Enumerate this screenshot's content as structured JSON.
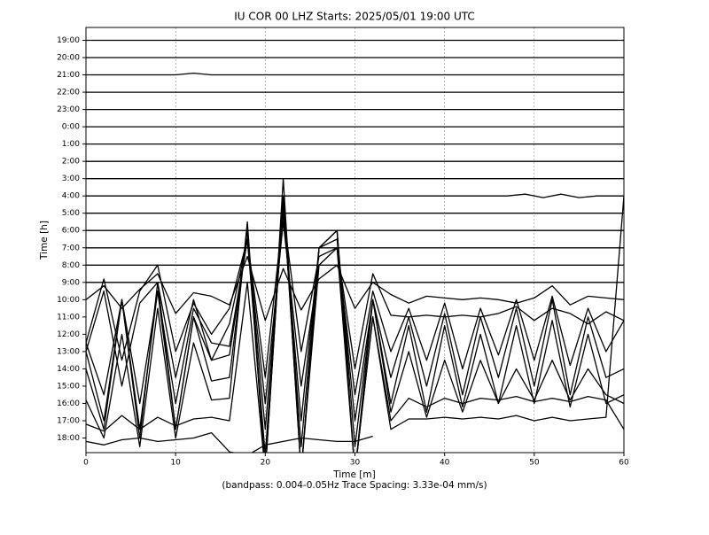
{
  "chart_data": {
    "type": "helicorder",
    "title": "IU COR 00 LHZ  Starts: 2025/05/01 19:00 UTC",
    "x_label": "Time [m]",
    "y_label": "Time [h]",
    "footnote": "(bandpass: 0.004-0.05Hz  Trace Spacing: 3.33e-04 mm/s)",
    "xlim": [
      0,
      60
    ],
    "xticks": [
      0,
      10,
      20,
      30,
      40,
      50,
      60
    ],
    "grid": true,
    "color": "#000000",
    "categories": [
      "19:00",
      "20:00",
      "21:00",
      "22:00",
      "23:00",
      "0:00",
      "1:00",
      "2:00",
      "3:00",
      "4:00",
      "5:00",
      "6:00",
      "7:00",
      "8:00",
      "9:00",
      "10:00",
      "11:00",
      "12:00",
      "13:00",
      "14:00",
      "15:00",
      "16:00",
      "17:00",
      "18:00"
    ],
    "series": [
      {
        "x": [
          0,
          60
        ],
        "values": [
          0,
          0
        ]
      },
      {
        "x": [
          0,
          60
        ],
        "values": [
          0,
          0
        ]
      },
      {
        "x": [
          0,
          10,
          12,
          14,
          60
        ],
        "values": [
          0,
          0,
          0.1,
          0,
          0
        ]
      },
      {
        "x": [
          0,
          60
        ],
        "values": [
          0,
          0
        ]
      },
      {
        "x": [
          0,
          60
        ],
        "values": [
          0,
          0
        ]
      },
      {
        "x": [
          0,
          60
        ],
        "values": [
          0,
          0
        ]
      },
      {
        "x": [
          0,
          60
        ],
        "values": [
          0,
          0
        ]
      },
      {
        "x": [
          0,
          60
        ],
        "values": [
          0,
          0
        ]
      },
      {
        "x": [
          0,
          60
        ],
        "values": [
          0,
          0
        ]
      },
      {
        "x": [
          0,
          47,
          49,
          51,
          53,
          55,
          57,
          60
        ],
        "values": [
          0,
          0,
          0.1,
          -0.1,
          0.1,
          -0.1,
          0,
          0
        ]
      },
      {
        "x": [
          0,
          60
        ],
        "values": [
          0,
          0
        ]
      },
      {
        "x": [
          0,
          60
        ],
        "values": [
          0,
          0
        ]
      },
      {
        "x": [
          0,
          60
        ],
        "values": [
          0,
          0
        ]
      },
      {
        "x": [
          0,
          60
        ],
        "values": [
          0,
          0
        ]
      },
      {
        "x": [
          0,
          60
        ],
        "values": [
          0,
          0
        ]
      },
      {
        "x": [
          0,
          2,
          4,
          6,
          8,
          10,
          12,
          14,
          16,
          18,
          20,
          22,
          24,
          26,
          28,
          30,
          32,
          34,
          36,
          38,
          40,
          42,
          44,
          46,
          48,
          50,
          52,
          54,
          56,
          58,
          60
        ],
        "values": [
          0,
          0.8,
          -0.5,
          0.6,
          1.5,
          -0.8,
          0.4,
          0.2,
          -0.3,
          2.5,
          -1.2,
          1.8,
          -0.6,
          1.2,
          2.0,
          -0.5,
          1.0,
          0.3,
          -0.2,
          0.2,
          0.1,
          0,
          0.1,
          0,
          -0.2,
          0.1,
          0.8,
          -0.3,
          0.2,
          0.1,
          0
        ]
      },
      {
        "x": [
          0,
          2,
          4,
          6,
          8,
          10,
          12,
          14,
          16,
          18,
          20,
          22,
          24,
          26,
          28,
          30,
          32,
          34,
          36,
          38,
          40,
          42,
          44,
          46,
          48,
          50,
          52,
          54,
          56,
          58,
          60
        ],
        "values": [
          -1.5,
          2.2,
          -2.5,
          1.5,
          3.0,
          -2.0,
          0.8,
          -1.0,
          0.5,
          4.5,
          -3.5,
          6.0,
          -2.0,
          3.5,
          4.0,
          -3.0,
          2.5,
          0.1,
          0,
          0.1,
          0,
          0.1,
          0,
          0.2,
          0.6,
          -0.2,
          0.5,
          0.2,
          -0.4,
          0.3,
          -0.2
        ]
      },
      {
        "x": [
          0,
          2,
          4,
          6,
          8,
          10,
          12,
          14,
          16,
          18,
          20,
          22,
          24,
          26,
          28,
          30,
          32,
          34,
          36,
          38,
          40,
          42,
          44,
          46,
          48,
          50,
          52,
          54,
          56,
          58,
          60
        ],
        "values": [
          -1.0,
          2.5,
          -3.0,
          1.8,
          3.0,
          -2.5,
          2.0,
          -1.5,
          0.6,
          5.5,
          -4.0,
          6.5,
          -3.0,
          4.0,
          5.0,
          -3.5,
          2.5,
          -1.0,
          1.5,
          -1.5,
          1.8,
          -2.0,
          1.5,
          -1.2,
          2.0,
          -1.5,
          2.2,
          -1.8,
          1.5,
          -1.0,
          0.8
        ]
      },
      {
        "x": [
          0,
          2,
          4,
          6,
          8,
          10,
          12,
          14,
          16,
          18,
          20,
          22,
          24,
          26,
          28,
          30,
          32,
          34,
          36,
          38,
          40,
          42,
          44,
          46,
          48,
          50,
          52,
          54,
          56,
          58,
          60
        ],
        "values": [
          0.5,
          -2.5,
          3.0,
          -3.0,
          3.5,
          -3.0,
          2.5,
          0.5,
          0.3,
          6.5,
          -4.5,
          8.0,
          -4.0,
          6.0,
          6.5,
          -4.0,
          3.0,
          -1.5,
          2.0,
          -2.0,
          2.2,
          -2.5,
          2.0,
          -1.5,
          2.5,
          -2.0,
          3.0,
          -2.5,
          2.0,
          -1.5,
          -1.0
        ]
      },
      {
        "x": [
          0,
          2,
          4,
          6,
          8,
          10,
          12,
          14,
          16,
          18,
          20,
          22,
          24,
          26,
          28,
          30,
          32,
          34,
          36,
          38,
          40,
          42,
          44,
          46,
          48,
          50,
          52,
          54,
          56,
          58,
          60
        ],
        "values": [
          1.0,
          -3.0,
          4.0,
          -3.5,
          4.5,
          -3.5,
          3.0,
          0.5,
          0.8,
          7.5,
          -5.0,
          9.5,
          -4.5,
          7.0,
          8.0,
          -4.5,
          4.0,
          -2.0,
          2.5,
          -2.5,
          2.5,
          -2.2,
          2.0,
          -2.0,
          2.5,
          -2.0,
          2.8,
          -2.2,
          2.0,
          -2.0,
          -1.5
        ]
      },
      {
        "x": [
          0,
          2,
          4,
          6,
          8,
          10,
          12,
          14,
          16,
          18,
          20,
          22,
          24,
          26,
          28,
          30,
          32,
          34,
          36,
          38,
          40,
          42,
          44,
          46,
          48,
          50,
          52,
          54,
          56,
          58,
          60
        ],
        "values": [
          1.0,
          -2.5,
          5.0,
          -3.0,
          6.0,
          -2.5,
          4.0,
          0.3,
          0.5,
          9.0,
          -5.0,
          11.0,
          -5.0,
          8.0,
          9.0,
          -5.0,
          5.0,
          -1.5,
          2.0,
          -1.8,
          1.5,
          -1.5,
          1.5,
          -1.0,
          1.0,
          -0.8,
          1.5,
          -0.8,
          1.0,
          -0.5,
          -1.0
        ]
      },
      {
        "x": [
          0,
          2,
          4,
          6,
          8,
          10,
          12,
          14,
          16,
          18,
          20,
          22,
          24,
          26,
          28,
          30,
          32,
          34,
          36,
          38,
          40,
          42,
          44,
          46,
          48,
          50,
          52,
          54,
          56,
          58,
          60
        ],
        "values": [
          0.2,
          -2.0,
          4.0,
          -2.5,
          5.5,
          -2.0,
          3.5,
          0.2,
          0.3,
          10.5,
          -4.0,
          12.0,
          -4.0,
          9.0,
          10.0,
          -4.0,
          5.0,
          -1.0,
          0.3,
          -0.2,
          0.3,
          0,
          0.3,
          0.2,
          0.4,
          0.1,
          0.3,
          0.1,
          0.4,
          0.2,
          -1.5
        ]
      },
      {
        "x": [
          0,
          2,
          4,
          6,
          8,
          10,
          12,
          14,
          16,
          18,
          20,
          22,
          24,
          26,
          28,
          30,
          32,
          34,
          36,
          38,
          40,
          42,
          44,
          46,
          48,
          50,
          52,
          54,
          56,
          58,
          60
        ],
        "values": [
          -0.2,
          -0.6,
          0.3,
          -0.5,
          0.2,
          -0.3,
          0.1,
          0.2,
          0,
          8.0,
          -3.0,
          14.0,
          -3.0,
          9.0,
          10.0,
          -3.0,
          6.0,
          -0.5,
          0.1,
          0.1,
          0.2,
          0.1,
          0.2,
          0.1,
          0.3,
          0,
          0.2,
          0,
          0.1,
          0.2,
          13.0
        ]
      },
      {
        "x": [
          0,
          2,
          4,
          6,
          8,
          10,
          12,
          14,
          16,
          18,
          20,
          22,
          24,
          26,
          28,
          30,
          32
        ],
        "values": [
          -0.2,
          -0.4,
          -0.1,
          0,
          -0.2,
          -0.1,
          0,
          0.3,
          -0.8,
          -1.0,
          -0.4,
          -0.2,
          0,
          -0.1,
          -0.2,
          -0.2,
          0.1
        ]
      }
    ]
  }
}
